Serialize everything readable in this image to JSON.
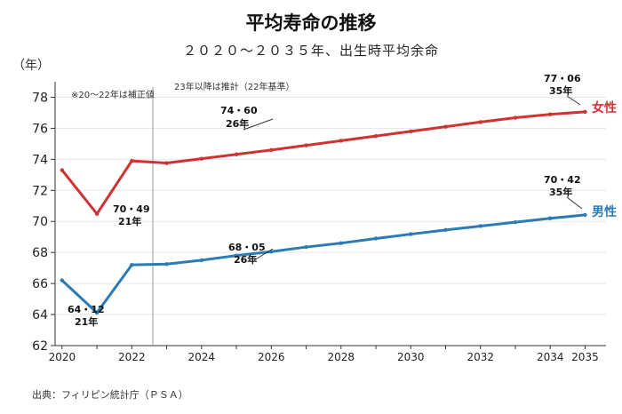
{
  "title": "平均寿命の推移",
  "subtitle": "２０２０〜２０３５年、出生時平均余命",
  "source": "出典：フィリピン統計庁（ＰＳＡ）",
  "chart_data": {
    "type": "line",
    "ylabel": "（年）",
    "xlabel": "",
    "ylim": [
      62,
      79
    ],
    "xlim": [
      2019.8,
      2035.6
    ],
    "yticks": [
      62,
      64,
      66,
      68,
      70,
      72,
      74,
      76,
      78
    ],
    "xticks": [
      "2020",
      "2022",
      "2024",
      "2026",
      "2028",
      "2030",
      "2032",
      "2034",
      "2035"
    ],
    "grid": "horizontal",
    "legend": "series labels at line ends (right)",
    "x": [
      2020,
      2021,
      2022,
      2023,
      2024,
      2025,
      2026,
      2027,
      2028,
      2029,
      2030,
      2031,
      2032,
      2033,
      2034,
      2035
    ],
    "series": [
      {
        "name": "女性",
        "color": "#d03234",
        "values": [
          73.3,
          70.49,
          73.9,
          73.76,
          74.04,
          74.32,
          74.6,
          74.9,
          75.2,
          75.5,
          75.8,
          76.1,
          76.4,
          76.68,
          76.9,
          77.06
        ]
      },
      {
        "name": "男性",
        "color": "#2b7bb5",
        "values": [
          66.2,
          64.12,
          67.2,
          67.25,
          67.5,
          67.8,
          68.05,
          68.35,
          68.6,
          68.9,
          69.18,
          69.45,
          69.7,
          69.95,
          70.2,
          70.42
        ]
      }
    ],
    "annotations": {
      "actual_note": "※20〜22年は補正値",
      "estimate_note": "23年以降は推計（22年基準）",
      "female_21_value": "70・49",
      "female_21_year": "21年",
      "female_26_value": "74・60",
      "female_26_year": "26年",
      "female_35_value": "77・06",
      "female_35_year": "35年",
      "male_21_value": "64・12",
      "male_21_year": "21年",
      "male_26_value": "68・05",
      "male_26_year": "26年",
      "male_35_value": "70・42",
      "male_35_year": "35年"
    }
  }
}
